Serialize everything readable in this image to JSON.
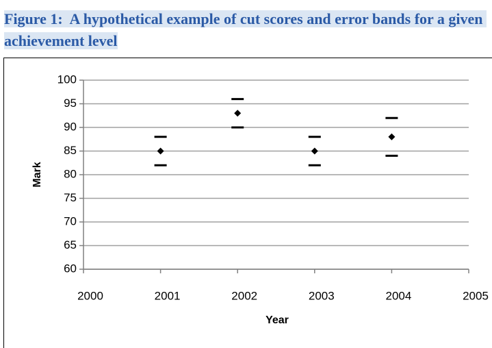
{
  "chart_data": {
    "type": "errorband",
    "title": "Figure 1:  A hypothetical example of cut scores and error bands for a given achievement level",
    "x_label": "Year",
    "y_label": "Mark",
    "x": [
      2001,
      2002,
      2003,
      2004
    ],
    "values": [
      85,
      93,
      85,
      88
    ],
    "upper": [
      88,
      96,
      88,
      92
    ],
    "lower": [
      82,
      90,
      82,
      84
    ],
    "color": "#000000",
    "xlim": [
      2000,
      2005
    ],
    "xticks": [
      2000,
      2001,
      2002,
      2003,
      2004,
      2005
    ],
    "ylim": [
      60,
      100
    ],
    "yticks": [
      60,
      65,
      70,
      75,
      80,
      85,
      90,
      95,
      100
    ],
    "grid": true
  }
}
